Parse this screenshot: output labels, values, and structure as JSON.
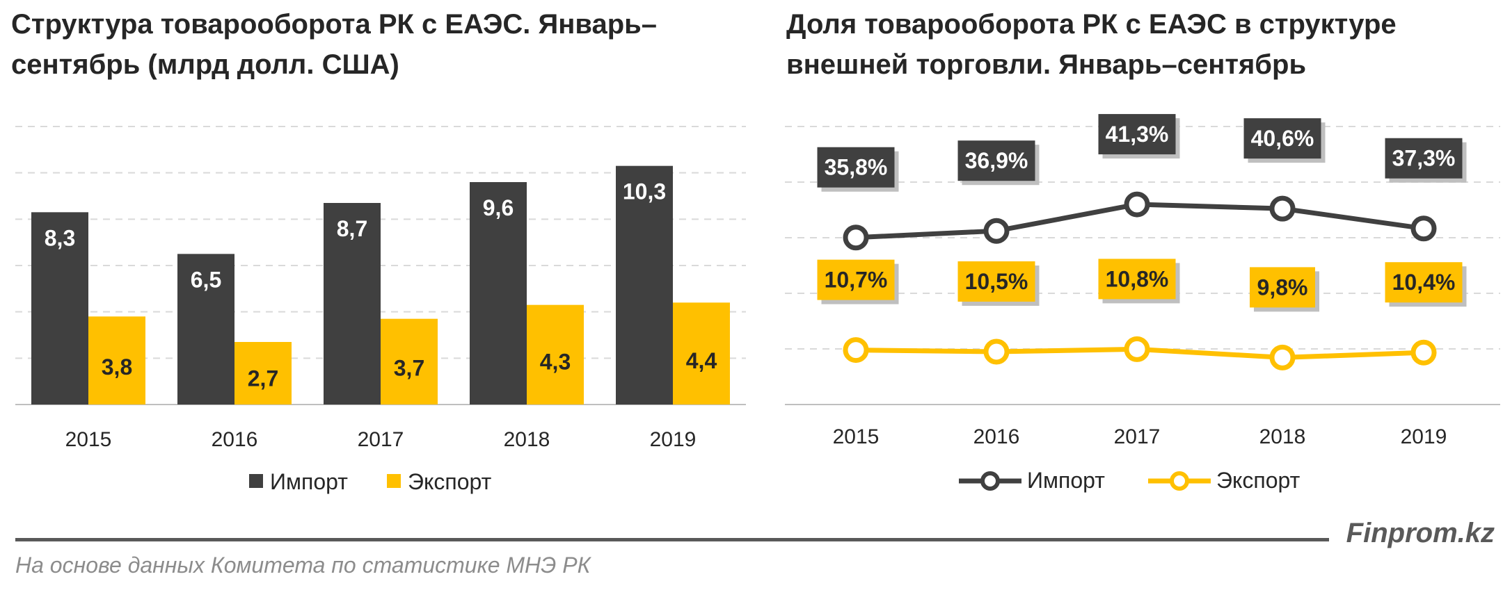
{
  "colors": {
    "import": "#404040",
    "export": "#FFC000",
    "grid": "#d9d9d9",
    "text": "#262626"
  },
  "chart_data": [
    {
      "type": "bar",
      "title": "Структура товарооборота РК с ЕАЭС. Январь–сентябрь (млрд долл. США)",
      "categories": [
        "2015",
        "2016",
        "2017",
        "2018",
        "2019"
      ],
      "series": [
        {
          "name": "Импорт",
          "values": [
            8.3,
            6.5,
            8.7,
            9.6,
            10.3
          ],
          "labels": [
            "8,3",
            "6,5",
            "8,7",
            "9,6",
            "10,3"
          ]
        },
        {
          "name": "Экспорт",
          "values": [
            3.8,
            2.7,
            3.7,
            4.3,
            4.4
          ],
          "labels": [
            "3,8",
            "2,7",
            "3,7",
            "4,3",
            "4,4"
          ]
        }
      ],
      "ylim": [
        0,
        12
      ],
      "grid": true,
      "legend": "bottom"
    },
    {
      "type": "line",
      "title": "Доля товарооборота РК с ЕАЭС в структуре внешней торговли. Январь–сентябрь",
      "categories": [
        "2015",
        "2016",
        "2017",
        "2018",
        "2019"
      ],
      "series": [
        {
          "name": "Импорт",
          "values": [
            35.8,
            36.9,
            41.3,
            40.6,
            37.3
          ],
          "labels": [
            "35,8%",
            "36,9%",
            "41,3%",
            "40,6%",
            "37,3%"
          ]
        },
        {
          "name": "Экспорт",
          "values": [
            10.7,
            10.5,
            10.8,
            9.8,
            10.4
          ],
          "labels": [
            "10,7%",
            "10,5%",
            "10,8%",
            "9,8%",
            "10,4%"
          ]
        }
      ],
      "grid": true,
      "legend": "bottom"
    }
  ],
  "footer": {
    "site": "Finprom.kz",
    "source": "На основе данных  Комитета по статистике МНЭ РК"
  }
}
